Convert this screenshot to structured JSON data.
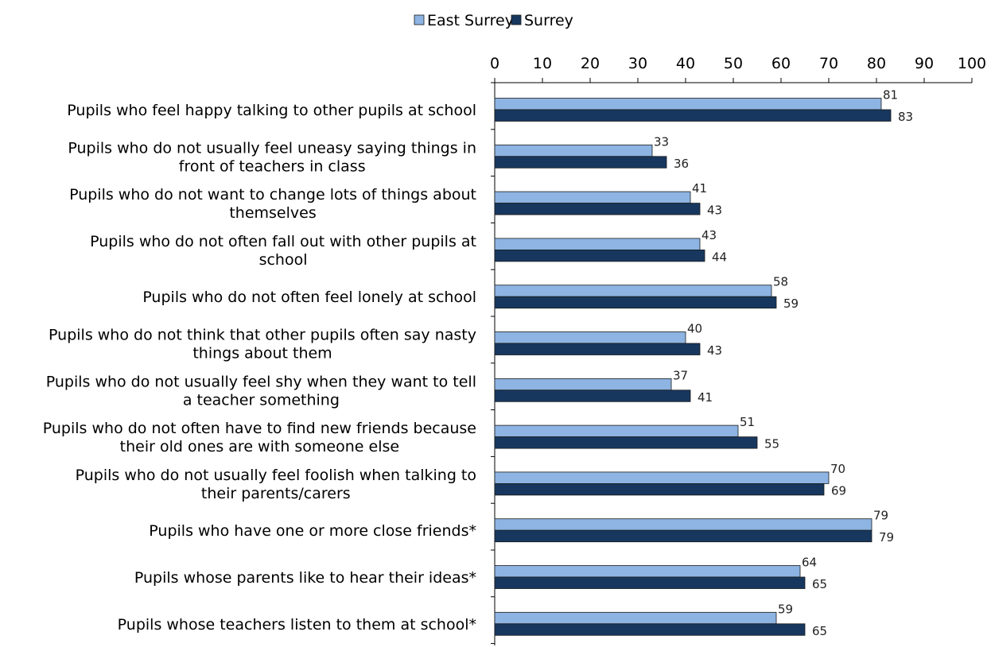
{
  "chart_data": {
    "type": "bar",
    "orientation": "horizontal",
    "xlim": [
      0,
      100
    ],
    "x_ticks": [
      "0",
      "10",
      "20",
      "30",
      "40",
      "50",
      "60",
      "70",
      "80",
      "90",
      "100"
    ],
    "legend_placement": "top-center",
    "grid": false,
    "categories": [
      [
        "Pupils who feel happy talking to other pupils at school"
      ],
      [
        "Pupils who do not usually feel uneasy saying things in",
        "front of teachers in class"
      ],
      [
        "Pupils who do not want to change lots of things about",
        "themselves"
      ],
      [
        "Pupils who do not often fall out with other pupils at",
        "school"
      ],
      [
        "Pupils who do not often feel lonely at school"
      ],
      [
        "Pupils who do not think that other pupils often say nasty",
        "things about them"
      ],
      [
        "Pupils who do not usually feel shy when they want to tell",
        "a teacher something"
      ],
      [
        "Pupils who do not often have to find new friends because",
        "their old ones are with someone else"
      ],
      [
        "Pupils who do not usually feel foolish when talking to",
        "their parents/carers"
      ],
      [
        "Pupils who have one or more close friends*"
      ],
      [
        "Pupils whose parents like to hear their ideas*"
      ],
      [
        "Pupils whose teachers listen to them at school*"
      ]
    ],
    "series": [
      {
        "name": "East Surrey",
        "color": "#8db4e2",
        "values": [
          81,
          33,
          41,
          43,
          58,
          40,
          37,
          51,
          70,
          79,
          64,
          59
        ]
      },
      {
        "name": "Surrey",
        "color": "#17375e",
        "values": [
          83,
          36,
          43,
          44,
          59,
          43,
          41,
          55,
          69,
          79,
          65,
          65
        ]
      }
    ]
  }
}
